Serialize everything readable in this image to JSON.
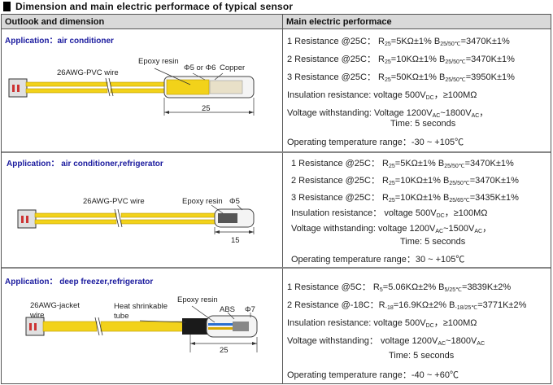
{
  "title": "Dimension and main electric performace of typical sensor",
  "headers": {
    "left": "Outlook and dimension",
    "right": "Main electric performace"
  },
  "rows": [
    {
      "application": "Application：air conditioner",
      "labels": {
        "wire": "26AWG-PVC wire",
        "resin": "Epoxy resin",
        "diameter": "Φ5 or Φ6",
        "copper": "Copper",
        "length": "25"
      },
      "specs": {
        "r1": "1 Resistance @25C：R₂₅=5KΩ±1%    B₂₅/₅₀c=3470K±1%",
        "r1_a": "1 Resistance @25C： R",
        "r1_a_sub": "25",
        "r1_b": "=5KΩ±1%   B",
        "r1_b_sub": "25/50℃",
        "r1_c": "=3470K±1%",
        "r2_a": "2 Resistance @25C： R",
        "r2_a_sub": "25",
        "r2_b": "=10KΩ±1%   B",
        "r2_b_sub": "25/50℃",
        "r2_c": "=3470K±1%",
        "r3_a": "3 Resistance @25C： R",
        "r3_a_sub": "25",
        "r3_b": "=50KΩ±1%   B",
        "r3_b_sub": "25/50℃",
        "r3_c": "=3950K±1%",
        "ins_a": "Insulation resistance:     voltage 500V",
        "ins_sub": "DC",
        "ins_b": "，≥100MΩ",
        "vw_a": "Voltage withstanding:     Voltage 1200V",
        "vw_sub1": "AC",
        "vw_b": "~1800V",
        "vw_sub2": "AC",
        "vw_c": "，",
        "time": "Time: 5 seconds",
        "temp": "Operating temperature range：-30 ~ +105℃"
      }
    },
    {
      "application": "Application： air conditioner,refrigerator",
      "labels": {
        "wire": "26AWG-PVC wire",
        "resin": "Epoxy resin",
        "diameter": "Φ5",
        "length": "15"
      },
      "specs": {
        "r1_a": "1 Resistance @25C： R",
        "r1_a_sub": "25",
        "r1_b": "=5KΩ±1%    B",
        "r1_b_sub": "25/50℃",
        "r1_c": "=3470K±1%",
        "r2_a": "2 Resistance @25C： R",
        "r2_a_sub": "25",
        "r2_b": "=10KΩ±1%    B",
        "r2_b_sub": "25/50℃",
        "r2_c": "=3470K±1%",
        "r3_a": "3 Resistance @25C： R",
        "r3_a_sub": "25",
        "r3_b": "=10KΩ±1%    B",
        "r3_b_sub": "25/65℃",
        "r3_c": "=3435K±1%",
        "ins_a": "Insulation resistance： voltage 500V",
        "ins_sub": "DC",
        "ins_b": "，≥100MΩ",
        "vw_a": "Voltage withstanding:       voltage 1200V",
        "vw_sub1": "AC",
        "vw_b": "~1500V",
        "vw_sub2": "AC",
        "vw_c": "，",
        "time": "Time: 5 seconds",
        "temp": "Operating temperature range：30 ~ +105℃"
      }
    },
    {
      "application": "Application： deep freezer,refrigerator",
      "labels": {
        "wire1": "26AWG-jacket",
        "wire2": "wire",
        "shrink1": "Heat shrinkable",
        "shrink2": "tube",
        "resin": "Epoxy resin",
        "abs": "ABS",
        "diameter": "Φ7",
        "length": "25"
      },
      "specs": {
        "r1_a": "1 Resistance @5C： R",
        "r1_a_sub": "5",
        "r1_b": "=5.06KΩ±2%    B",
        "r1_b_sub": "5/25℃",
        "r1_c": "=3839K±2%",
        "r2_a": "2 Resistance @-18C：R",
        "r2_a_sub": "-18",
        "r2_b": "=16.9KΩ±2%    B",
        "r2_b_sub": "-18/25℃",
        "r2_c": "=3771K±2%",
        "ins_a": "Insulation resistance:    voltage 500V",
        "ins_sub": "DC",
        "ins_b": "，≥100MΩ",
        "vw_a": "Voltage withstanding： voltage 1200V",
        "vw_sub1": "AC",
        "vw_b": "~1800V",
        "vw_sub2": "AC",
        "vw_c": "",
        "time": "Time: 5 seconds",
        "temp": "Operating temperature range：-40 ~ +60℃"
      }
    }
  ],
  "colors": {
    "wire": "#f2d21a",
    "app_text": "#1a1a9e",
    "header_bg": "#d9d9d9"
  }
}
